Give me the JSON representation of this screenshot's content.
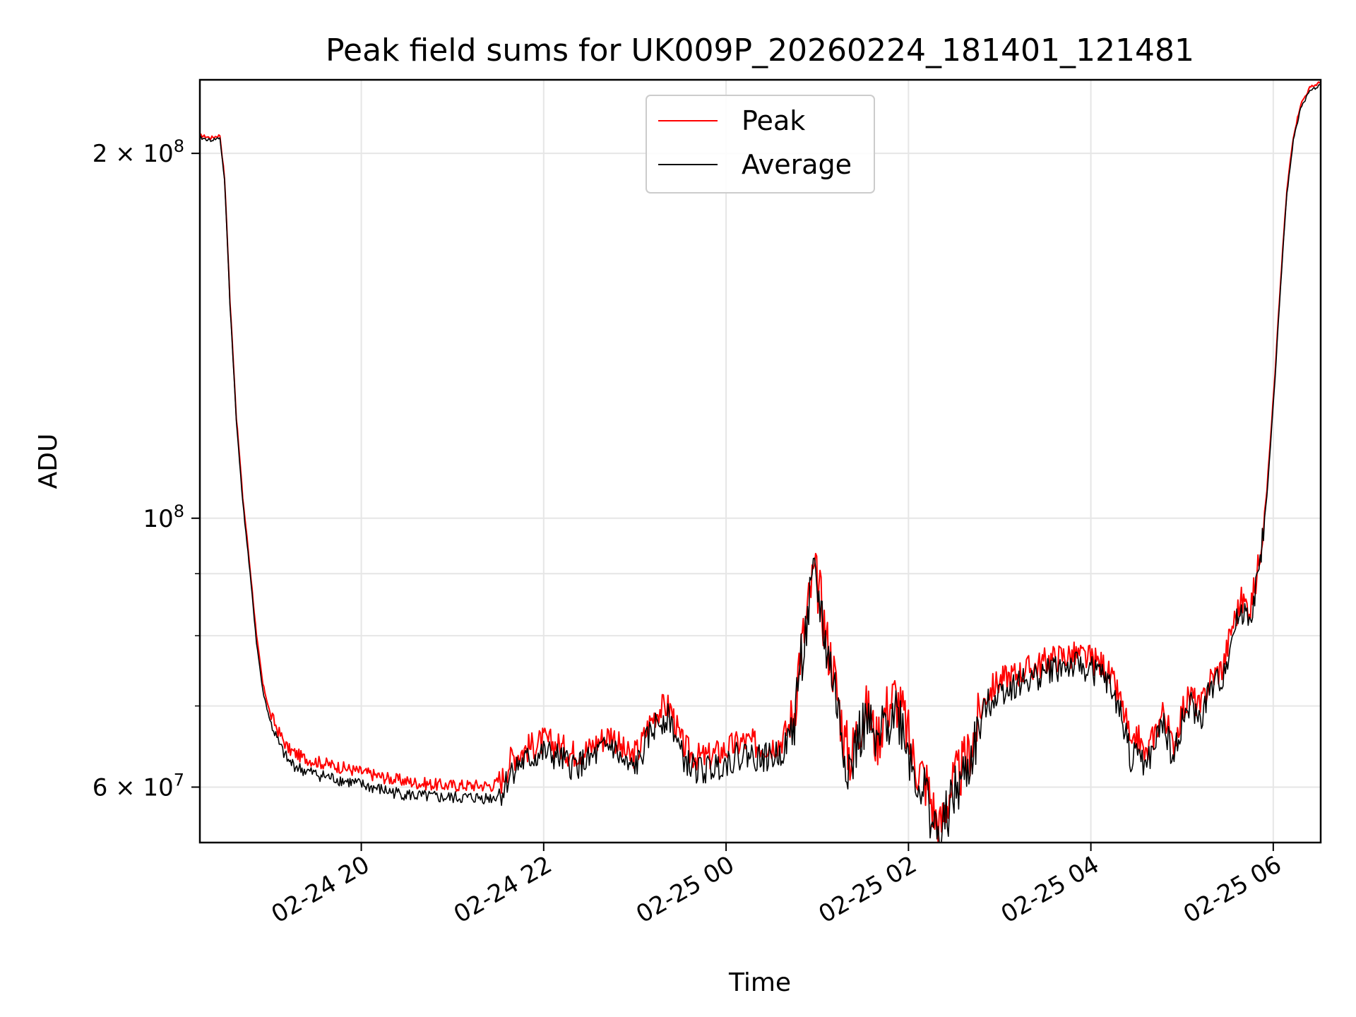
{
  "chart_data": {
    "type": "line",
    "title": "Peak field sums for UK009P_20260224_181401_121481",
    "xlabel": "Time",
    "ylabel": "ADU",
    "yscale": "log",
    "ylim": [
      54000000,
      230000000
    ],
    "xlim_hours_from_2026_02_24_00": [
      18.23,
      30.52
    ],
    "x_ticks": [
      {
        "hour": 20,
        "label": "02-24 20"
      },
      {
        "hour": 22,
        "label": "02-24 22"
      },
      {
        "hour": 24,
        "label": "02-25 00"
      },
      {
        "hour": 26,
        "label": "02-25 02"
      },
      {
        "hour": 28,
        "label": "02-25 04"
      },
      {
        "hour": 30,
        "label": "02-25 06"
      }
    ],
    "y_ticks": [
      {
        "value": 200000000,
        "mantissa": "2 × 10",
        "exponent": "8"
      },
      {
        "value": 100000000,
        "mantissa": "10",
        "exponent": "8"
      },
      {
        "value": 60000000,
        "mantissa": "6 × 10",
        "exponent": "7"
      }
    ],
    "y_minor_ticks": [
      70000000,
      80000000,
      90000000
    ],
    "grid": true,
    "legend": {
      "position": "upper center",
      "entries": [
        {
          "name": "Peak",
          "color": "#ff0000"
        },
        {
          "name": "Average",
          "color": "#000000"
        }
      ]
    },
    "series": [
      {
        "name": "Average",
        "color": "#000000",
        "points": [
          [
            18.23,
            206
          ],
          [
            18.35,
            205
          ],
          [
            18.45,
            206
          ],
          [
            18.5,
            190
          ],
          [
            18.56,
            150
          ],
          [
            18.63,
            120
          ],
          [
            18.7,
            103
          ],
          [
            18.78,
            90
          ],
          [
            18.85,
            79
          ],
          [
            18.92,
            72
          ],
          [
            19.0,
            68
          ],
          [
            19.1,
            65
          ],
          [
            19.2,
            63
          ],
          [
            19.35,
            62
          ],
          [
            19.5,
            61.5
          ],
          [
            19.7,
            61
          ],
          [
            19.9,
            60.5
          ],
          [
            20.1,
            60
          ],
          [
            20.3,
            59.5
          ],
          [
            20.6,
            59
          ],
          [
            20.9,
            58.8
          ],
          [
            21.2,
            58.8
          ],
          [
            21.45,
            58.8
          ],
          [
            21.55,
            59.5
          ],
          [
            21.65,
            62
          ],
          [
            21.8,
            63
          ],
          [
            22.0,
            64
          ],
          [
            22.15,
            63.5
          ],
          [
            22.3,
            62.5
          ],
          [
            22.5,
            63
          ],
          [
            22.6,
            64
          ],
          [
            22.75,
            65
          ],
          [
            22.85,
            63
          ],
          [
            22.95,
            62
          ],
          [
            23.05,
            63
          ],
          [
            23.15,
            66
          ],
          [
            23.25,
            68
          ],
          [
            23.35,
            68.5
          ],
          [
            23.4,
            68
          ],
          [
            23.5,
            64
          ],
          [
            23.6,
            62.5
          ],
          [
            23.7,
            62
          ],
          [
            23.8,
            62
          ],
          [
            23.9,
            62.5
          ],
          [
            24.0,
            63
          ],
          [
            24.1,
            63.5
          ],
          [
            24.2,
            64
          ],
          [
            24.35,
            63.5
          ],
          [
            24.5,
            63.5
          ],
          [
            24.6,
            64
          ],
          [
            24.7,
            66
          ],
          [
            24.75,
            68
          ],
          [
            24.8,
            75
          ],
          [
            24.87,
            80
          ],
          [
            24.93,
            86
          ],
          [
            24.97,
            89
          ],
          [
            25.03,
            85
          ],
          [
            25.1,
            78
          ],
          [
            25.17,
            74
          ],
          [
            25.22,
            70
          ],
          [
            25.3,
            64
          ],
          [
            25.37,
            62
          ],
          [
            25.45,
            66
          ],
          [
            25.55,
            68
          ],
          [
            25.65,
            64
          ],
          [
            25.75,
            68
          ],
          [
            25.85,
            70
          ],
          [
            25.95,
            67
          ],
          [
            26.05,
            62
          ],
          [
            26.2,
            59
          ],
          [
            26.3,
            55
          ],
          [
            26.35,
            54
          ],
          [
            26.45,
            58
          ],
          [
            26.55,
            60
          ],
          [
            26.65,
            62
          ],
          [
            26.75,
            66
          ],
          [
            26.85,
            70
          ],
          [
            27.0,
            72
          ],
          [
            27.2,
            73
          ],
          [
            27.4,
            74
          ],
          [
            27.55,
            75
          ],
          [
            27.7,
            75.5
          ],
          [
            27.85,
            75.5
          ],
          [
            28.0,
            75
          ],
          [
            28.15,
            74
          ],
          [
            28.3,
            70
          ],
          [
            28.4,
            66
          ],
          [
            28.45,
            62
          ],
          [
            28.5,
            65
          ],
          [
            28.6,
            62
          ],
          [
            28.7,
            65
          ],
          [
            28.8,
            68
          ],
          [
            28.9,
            63
          ],
          [
            29.0,
            68
          ],
          [
            29.1,
            70
          ],
          [
            29.2,
            68
          ],
          [
            29.3,
            72
          ],
          [
            29.45,
            74
          ],
          [
            29.55,
            80
          ],
          [
            29.65,
            84
          ],
          [
            29.75,
            83
          ],
          [
            29.82,
            88
          ],
          [
            29.88,
            96
          ],
          [
            29.93,
            104
          ],
          [
            29.97,
            115
          ],
          [
            30.02,
            130
          ],
          [
            30.08,
            155
          ],
          [
            30.15,
            185
          ],
          [
            30.22,
            205
          ],
          [
            30.3,
            218
          ],
          [
            30.4,
            225
          ],
          [
            30.52,
            228
          ]
        ]
      },
      {
        "name": "Peak",
        "color": "#ff0000",
        "points": [
          [
            18.23,
            207
          ],
          [
            18.35,
            206
          ],
          [
            18.45,
            207
          ],
          [
            18.5,
            191
          ],
          [
            18.56,
            151
          ],
          [
            18.63,
            121
          ],
          [
            18.7,
            104
          ],
          [
            18.78,
            91
          ],
          [
            18.85,
            80
          ],
          [
            18.92,
            73
          ],
          [
            19.0,
            69
          ],
          [
            19.1,
            66.5
          ],
          [
            19.2,
            64.5
          ],
          [
            19.35,
            63.5
          ],
          [
            19.5,
            63
          ],
          [
            19.7,
            62.5
          ],
          [
            19.9,
            62
          ],
          [
            20.1,
            61.5
          ],
          [
            20.3,
            61
          ],
          [
            20.6,
            60.5
          ],
          [
            20.9,
            60.2
          ],
          [
            21.2,
            60.2
          ],
          [
            21.45,
            60.2
          ],
          [
            21.55,
            61
          ],
          [
            21.65,
            63.5
          ],
          [
            21.8,
            64.5
          ],
          [
            22.0,
            65.5
          ],
          [
            22.15,
            65
          ],
          [
            22.3,
            64
          ],
          [
            22.5,
            64.5
          ],
          [
            22.6,
            65.5
          ],
          [
            22.75,
            66.5
          ],
          [
            22.85,
            64.5
          ],
          [
            22.95,
            63.5
          ],
          [
            23.05,
            64.5
          ],
          [
            23.15,
            67.5
          ],
          [
            23.25,
            69.5
          ],
          [
            23.35,
            70
          ],
          [
            23.4,
            69.5
          ],
          [
            23.5,
            65.5
          ],
          [
            23.6,
            64
          ],
          [
            23.7,
            63.5
          ],
          [
            23.8,
            63.5
          ],
          [
            23.9,
            64
          ],
          [
            24.0,
            64.5
          ],
          [
            24.1,
            65
          ],
          [
            24.2,
            65.5
          ],
          [
            24.35,
            65
          ],
          [
            24.5,
            65
          ],
          [
            24.6,
            65.5
          ],
          [
            24.7,
            67.5
          ],
          [
            24.75,
            69.5
          ],
          [
            24.8,
            76.5
          ],
          [
            24.87,
            81.5
          ],
          [
            24.93,
            87.5
          ],
          [
            24.97,
            90
          ],
          [
            25.03,
            86.5
          ],
          [
            25.1,
            79.5
          ],
          [
            25.17,
            75.5
          ],
          [
            25.22,
            71.5
          ],
          [
            25.3,
            65.5
          ],
          [
            25.37,
            63.5
          ],
          [
            25.45,
            67.5
          ],
          [
            25.55,
            69.5
          ],
          [
            25.65,
            65.5
          ],
          [
            25.75,
            69.5
          ],
          [
            25.85,
            71.5
          ],
          [
            25.95,
            68.5
          ],
          [
            26.05,
            63.5
          ],
          [
            26.2,
            60.5
          ],
          [
            26.3,
            56.5
          ],
          [
            26.35,
            55.5
          ],
          [
            26.45,
            59.5
          ],
          [
            26.55,
            61.5
          ],
          [
            26.65,
            63.5
          ],
          [
            26.75,
            67.5
          ],
          [
            26.85,
            71.5
          ],
          [
            27.0,
            73.5
          ],
          [
            27.2,
            74.5
          ],
          [
            27.4,
            75.5
          ],
          [
            27.55,
            76.5
          ],
          [
            27.7,
            77
          ],
          [
            27.85,
            77
          ],
          [
            28.0,
            76.5
          ],
          [
            28.15,
            75.5
          ],
          [
            28.3,
            71.5
          ],
          [
            28.4,
            67.5
          ],
          [
            28.45,
            63.5
          ],
          [
            28.5,
            66.5
          ],
          [
            28.6,
            63.5
          ],
          [
            28.7,
            66.5
          ],
          [
            28.8,
            69.5
          ],
          [
            28.9,
            64.5
          ],
          [
            29.0,
            69.5
          ],
          [
            29.1,
            71.5
          ],
          [
            29.2,
            69.5
          ],
          [
            29.3,
            73.5
          ],
          [
            29.45,
            75.5
          ],
          [
            29.55,
            81.5
          ],
          [
            29.65,
            85.5
          ],
          [
            29.75,
            84.5
          ],
          [
            29.82,
            89.5
          ],
          [
            29.88,
            97.5
          ],
          [
            29.93,
            105.5
          ],
          [
            29.97,
            116.5
          ],
          [
            30.02,
            131.5
          ],
          [
            30.08,
            156.5
          ],
          [
            30.15,
            186.5
          ],
          [
            30.22,
            206.5
          ],
          [
            30.3,
            219.5
          ],
          [
            30.4,
            226.5
          ],
          [
            30.52,
            229
          ]
        ]
      }
    ],
    "value_unit_multiplier": 1000000
  }
}
